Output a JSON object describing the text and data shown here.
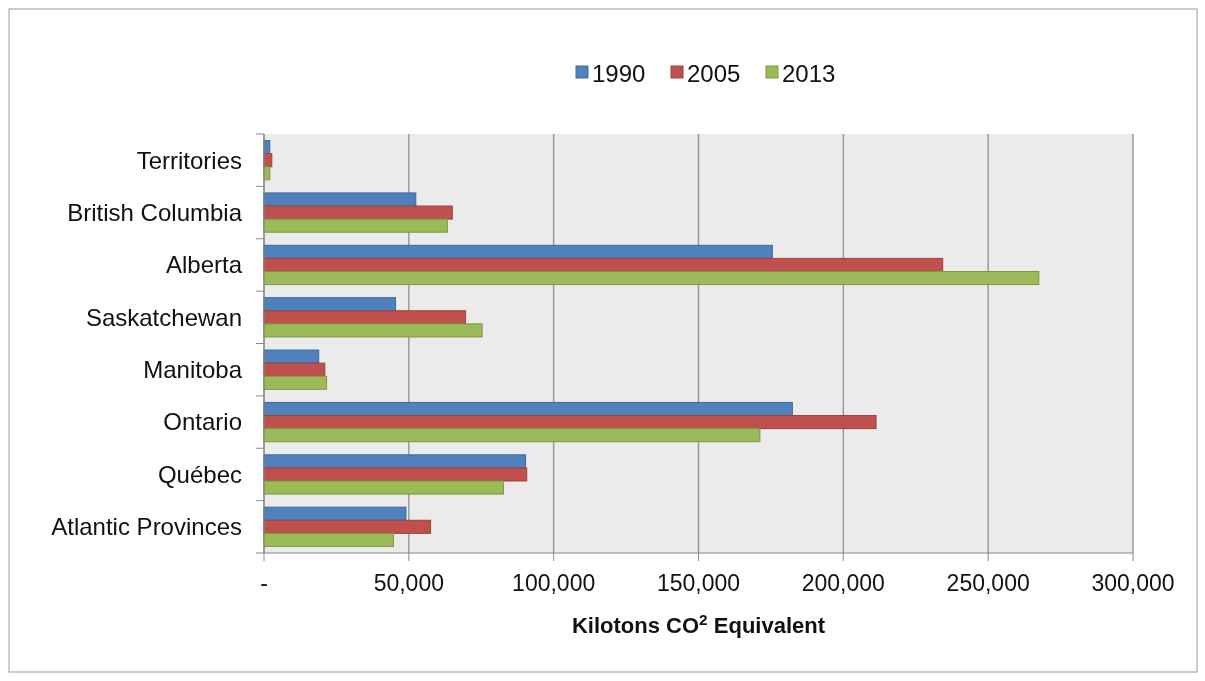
{
  "chart_data": {
    "type": "bar",
    "orientation": "horizontal",
    "xlabel": "Kilotons CO$^{2}$ Equivalent",
    "categories": [
      "Territories",
      "British Columbia",
      "Alberta",
      "Saskatchewan",
      "Manitoba",
      "Ontario",
      "Québec",
      "Atlantic Provinces"
    ],
    "series": [
      {
        "name": "1990",
        "color": "#4f81bd",
        "values": [
          2000,
          52400,
          175500,
          45400,
          18900,
          182400,
          90300,
          49000
        ]
      },
      {
        "name": "2005",
        "color": "#c0504d",
        "values": [
          2700,
          65000,
          234300,
          69600,
          21000,
          211300,
          90700,
          57500
        ]
      },
      {
        "name": "2013",
        "color": "#9bbb59",
        "values": [
          2000,
          63300,
          267500,
          75300,
          21600,
          171200,
          82700,
          44700
        ]
      }
    ],
    "xlim": [
      0,
      300000
    ],
    "xticks": [
      {
        "value": 0,
        "label": "-"
      },
      {
        "value": 50000,
        "label": "50,000"
      },
      {
        "value": 100000,
        "label": "100,000"
      },
      {
        "value": 150000,
        "label": "150,000"
      },
      {
        "value": 200000,
        "label": "200,000"
      },
      {
        "value": 250000,
        "label": "250,000"
      },
      {
        "value": 300000,
        "label": "300,000"
      }
    ],
    "grid": "x",
    "legend": "top"
  }
}
